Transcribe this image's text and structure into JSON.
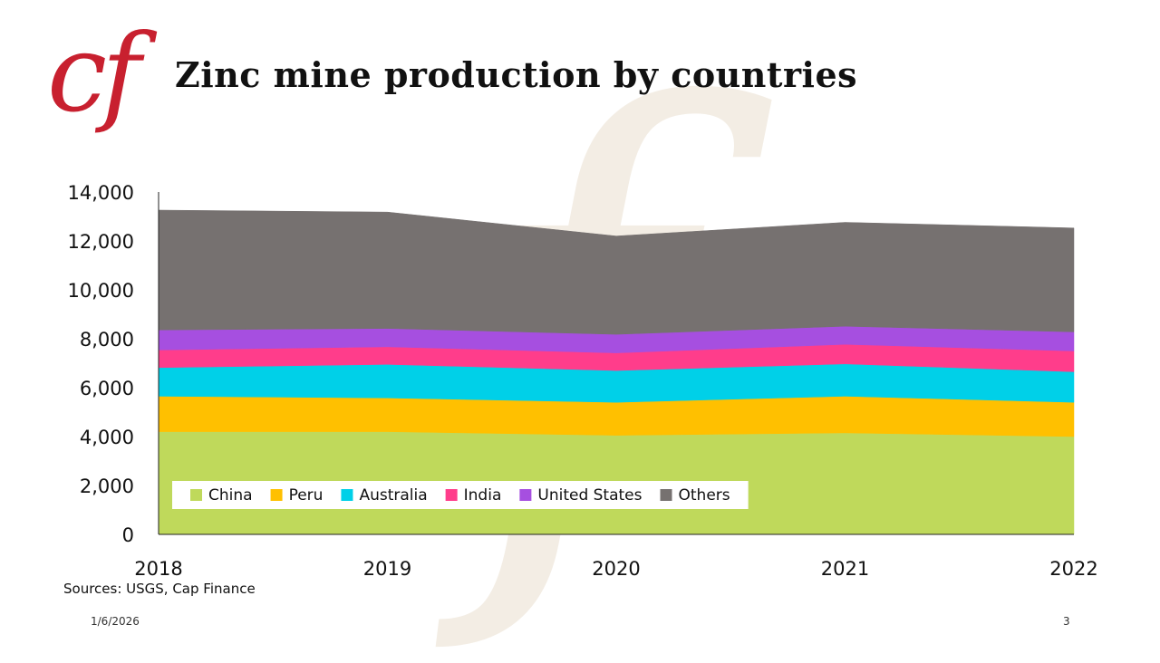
{
  "logo": {
    "text": "cf",
    "color": "#c8202f"
  },
  "title": "Zinc mine production by countries",
  "source": "Sources: USGS, Cap Finance",
  "footer": {
    "date": "1/6/2026",
    "page": "3"
  },
  "chart_data": {
    "type": "area",
    "stacked": true,
    "title": "Zinc mine production by countries",
    "xlabel": "",
    "ylabel": "",
    "x": [
      "2018",
      "2019",
      "2020",
      "2021",
      "2022"
    ],
    "ylim": [
      0,
      14000
    ],
    "yticks": [
      0,
      2000,
      4000,
      6000,
      8000,
      10000,
      12000,
      14000
    ],
    "ytick_labels": [
      "0",
      "2,000",
      "4,000",
      "6,000",
      "8,000",
      "10,000",
      "12,000",
      "14,000"
    ],
    "grid": false,
    "legend": "bottom-left",
    "series": [
      {
        "name": "China",
        "color": "#bfd95b",
        "values": [
          4200,
          4200,
          4050,
          4150,
          4000
        ]
      },
      {
        "name": "Peru",
        "color": "#ffc000",
        "values": [
          1450,
          1380,
          1350,
          1500,
          1400
        ]
      },
      {
        "name": "Australia",
        "color": "#00d0e8",
        "values": [
          1170,
          1370,
          1300,
          1320,
          1250
        ]
      },
      {
        "name": "India",
        "color": "#ff3d8b",
        "values": [
          720,
          720,
          720,
          800,
          850
        ]
      },
      {
        "name": "United States",
        "color": "#a64fe0",
        "values": [
          820,
          750,
          760,
          740,
          780
        ]
      },
      {
        "name": "Others",
        "color": "#767170",
        "values": [
          4900,
          4760,
          4020,
          4250,
          4250
        ]
      }
    ]
  }
}
